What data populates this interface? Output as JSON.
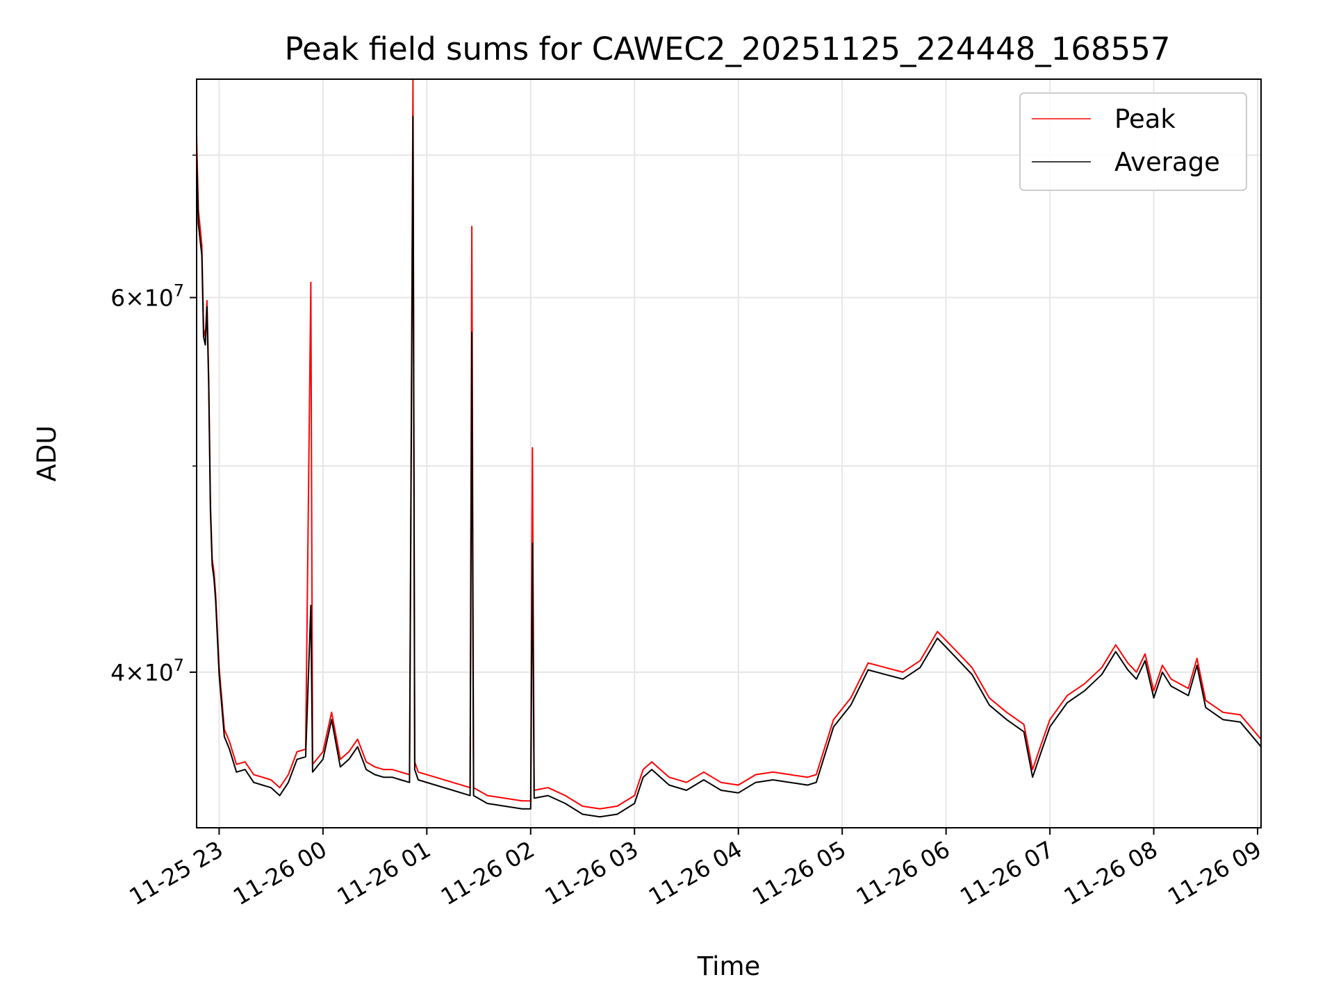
{
  "chart_data": {
    "type": "line",
    "title": "Peak field sums for CAWEC2_20251125_224448_168557",
    "xlabel": "Time",
    "ylabel": "ADU",
    "y_scale": "log",
    "x_range": [
      "2025-11-25 22:47",
      "2025-11-26 09:02"
    ],
    "ylim": [
      33800000,
      76000000
    ],
    "x_ticks": [
      "11-25 23",
      "11-26 00",
      "11-26 01",
      "11-26 02",
      "11-26 03",
      "11-26 04",
      "11-26 05",
      "11-26 06",
      "11-26 07",
      "11-26 08",
      "11-26 09"
    ],
    "y_ticks_major": [
      {
        "value": 40000000,
        "label_mantissa": "4",
        "label_exp": "7"
      },
      {
        "value": 60000000,
        "label_mantissa": "6",
        "label_exp": "7"
      }
    ],
    "y_ticks_minor": [
      30000000,
      50000000,
      70000000
    ],
    "grid": true,
    "legend_position": "upper right",
    "series": [
      {
        "name": "Peak",
        "color": "#ff0000",
        "points": [
          [
            "2025-11-25 22:47",
            71500000
          ],
          [
            "2025-11-25 22:48",
            66000000
          ],
          [
            "2025-11-25 22:50",
            63500000
          ],
          [
            "2025-11-25 22:51",
            58000000
          ],
          [
            "2025-11-25 22:52",
            57500000
          ],
          [
            "2025-11-25 22:53",
            59800000
          ],
          [
            "2025-11-25 22:54",
            55000000
          ],
          [
            "2025-11-25 22:55",
            48000000
          ],
          [
            "2025-11-25 22:56",
            45200000
          ],
          [
            "2025-11-25 22:57",
            44600000
          ],
          [
            "2025-11-25 22:58",
            43500000
          ],
          [
            "2025-11-25 23:00",
            40200000
          ],
          [
            "2025-11-25 23:03",
            37600000
          ],
          [
            "2025-11-25 23:06",
            37100000
          ],
          [
            "2025-11-25 23:10",
            36200000
          ],
          [
            "2025-11-25 23:15",
            36300000
          ],
          [
            "2025-11-25 23:20",
            35800000
          ],
          [
            "2025-11-25 23:25",
            35700000
          ],
          [
            "2025-11-25 23:30",
            35600000
          ],
          [
            "2025-11-25 23:35",
            35300000
          ],
          [
            "2025-11-25 23:40",
            35800000
          ],
          [
            "2025-11-25 23:45",
            36700000
          ],
          [
            "2025-11-25 23:50",
            36800000
          ],
          [
            "2025-11-25 23:53",
            61000000
          ],
          [
            "2025-11-25 23:54",
            36200000
          ],
          [
            "2025-11-26 00:00",
            36700000
          ],
          [
            "2025-11-26 00:05",
            38300000
          ],
          [
            "2025-11-26 00:10",
            36400000
          ],
          [
            "2025-11-26 00:15",
            36700000
          ],
          [
            "2025-11-26 00:20",
            37200000
          ],
          [
            "2025-11-26 00:25",
            36300000
          ],
          [
            "2025-11-26 00:30",
            36100000
          ],
          [
            "2025-11-26 00:35",
            36000000
          ],
          [
            "2025-11-26 00:40",
            36000000
          ],
          [
            "2025-11-26 00:45",
            35900000
          ],
          [
            "2025-11-26 00:50",
            35800000
          ],
          [
            "2025-11-26 00:52",
            76000000
          ],
          [
            "2025-11-26 00:53",
            36300000
          ],
          [
            "2025-11-26 00:55",
            35900000
          ],
          [
            "2025-11-26 01:05",
            35700000
          ],
          [
            "2025-11-26 01:15",
            35500000
          ],
          [
            "2025-11-26 01:25",
            35300000
          ],
          [
            "2025-11-26 01:26",
            64800000
          ],
          [
            "2025-11-26 01:27",
            35300000
          ],
          [
            "2025-11-26 01:35",
            35000000
          ],
          [
            "2025-11-26 01:45",
            34900000
          ],
          [
            "2025-11-26 01:55",
            34800000
          ],
          [
            "2025-11-26 02:00",
            34800000
          ],
          [
            "2025-11-26 02:01",
            51000000
          ],
          [
            "2025-11-26 02:02",
            35200000
          ],
          [
            "2025-11-26 02:10",
            35300000
          ],
          [
            "2025-11-26 02:20",
            35000000
          ],
          [
            "2025-11-26 02:30",
            34600000
          ],
          [
            "2025-11-26 02:40",
            34500000
          ],
          [
            "2025-11-26 02:50",
            34600000
          ],
          [
            "2025-11-26 03:00",
            35000000
          ],
          [
            "2025-11-26 03:05",
            36000000
          ],
          [
            "2025-11-26 03:10",
            36300000
          ],
          [
            "2025-11-26 03:20",
            35700000
          ],
          [
            "2025-11-26 03:30",
            35500000
          ],
          [
            "2025-11-26 03:40",
            35900000
          ],
          [
            "2025-11-26 03:50",
            35500000
          ],
          [
            "2025-11-26 04:00",
            35400000
          ],
          [
            "2025-11-26 04:10",
            35800000
          ],
          [
            "2025-11-26 04:20",
            35900000
          ],
          [
            "2025-11-26 04:30",
            35800000
          ],
          [
            "2025-11-26 04:40",
            35700000
          ],
          [
            "2025-11-26 04:45",
            35800000
          ],
          [
            "2025-11-26 04:55",
            38000000
          ],
          [
            "2025-11-26 05:05",
            38900000
          ],
          [
            "2025-11-26 05:15",
            40400000
          ],
          [
            "2025-11-26 05:25",
            40200000
          ],
          [
            "2025-11-26 05:35",
            40000000
          ],
          [
            "2025-11-26 05:45",
            40500000
          ],
          [
            "2025-11-26 05:55",
            41800000
          ],
          [
            "2025-11-26 06:05",
            41000000
          ],
          [
            "2025-11-26 06:15",
            40200000
          ],
          [
            "2025-11-26 06:25",
            38900000
          ],
          [
            "2025-11-26 06:35",
            38300000
          ],
          [
            "2025-11-26 06:45",
            37800000
          ],
          [
            "2025-11-26 06:50",
            36000000
          ],
          [
            "2025-11-26 06:55",
            37000000
          ],
          [
            "2025-11-26 07:00",
            38000000
          ],
          [
            "2025-11-26 07:10",
            39000000
          ],
          [
            "2025-11-26 07:20",
            39500000
          ],
          [
            "2025-11-26 07:30",
            40200000
          ],
          [
            "2025-11-26 07:38",
            41200000
          ],
          [
            "2025-11-26 07:45",
            40400000
          ],
          [
            "2025-11-26 07:50",
            40000000
          ],
          [
            "2025-11-26 07:55",
            40800000
          ],
          [
            "2025-11-26 08:00",
            39200000
          ],
          [
            "2025-11-26 08:05",
            40300000
          ],
          [
            "2025-11-26 08:10",
            39700000
          ],
          [
            "2025-11-26 08:20",
            39300000
          ],
          [
            "2025-11-26 08:25",
            40600000
          ],
          [
            "2025-11-26 08:30",
            38800000
          ],
          [
            "2025-11-26 08:40",
            38300000
          ],
          [
            "2025-11-26 08:50",
            38200000
          ],
          [
            "2025-11-26 09:02",
            37200000
          ]
        ]
      },
      {
        "name": "Average",
        "color": "#000000",
        "points": [
          [
            "2025-11-25 22:47",
            70000000
          ],
          [
            "2025-11-25 22:48",
            65000000
          ],
          [
            "2025-11-25 22:50",
            62800000
          ],
          [
            "2025-11-25 22:51",
            57500000
          ],
          [
            "2025-11-25 22:52",
            57000000
          ],
          [
            "2025-11-25 22:53",
            59400000
          ],
          [
            "2025-11-25 22:54",
            54500000
          ],
          [
            "2025-11-25 22:55",
            47600000
          ],
          [
            "2025-11-25 22:56",
            44900000
          ],
          [
            "2025-11-25 22:57",
            44300000
          ],
          [
            "2025-11-25 22:58",
            43200000
          ],
          [
            "2025-11-25 23:00",
            39900000
          ],
          [
            "2025-11-25 23:03",
            37300000
          ],
          [
            "2025-11-25 23:06",
            36800000
          ],
          [
            "2025-11-25 23:10",
            35900000
          ],
          [
            "2025-11-25 23:15",
            36000000
          ],
          [
            "2025-11-25 23:20",
            35500000
          ],
          [
            "2025-11-25 23:25",
            35400000
          ],
          [
            "2025-11-25 23:30",
            35300000
          ],
          [
            "2025-11-25 23:35",
            35000000
          ],
          [
            "2025-11-25 23:40",
            35500000
          ],
          [
            "2025-11-25 23:45",
            36400000
          ],
          [
            "2025-11-25 23:50",
            36500000
          ],
          [
            "2025-11-25 23:53",
            43000000
          ],
          [
            "2025-11-25 23:54",
            35900000
          ],
          [
            "2025-11-26 00:00",
            36400000
          ],
          [
            "2025-11-26 00:05",
            38000000
          ],
          [
            "2025-11-26 00:10",
            36100000
          ],
          [
            "2025-11-26 00:15",
            36400000
          ],
          [
            "2025-11-26 00:20",
            36900000
          ],
          [
            "2025-11-26 00:25",
            36000000
          ],
          [
            "2025-11-26 00:30",
            35800000
          ],
          [
            "2025-11-26 00:35",
            35700000
          ],
          [
            "2025-11-26 00:40",
            35700000
          ],
          [
            "2025-11-26 00:45",
            35600000
          ],
          [
            "2025-11-26 00:50",
            35500000
          ],
          [
            "2025-11-26 00:52",
            73000000
          ],
          [
            "2025-11-26 00:53",
            36000000
          ],
          [
            "2025-11-26 00:55",
            35600000
          ],
          [
            "2025-11-26 01:05",
            35400000
          ],
          [
            "2025-11-26 01:15",
            35200000
          ],
          [
            "2025-11-26 01:25",
            35000000
          ],
          [
            "2025-11-26 01:26",
            57800000
          ],
          [
            "2025-11-26 01:27",
            35000000
          ],
          [
            "2025-11-26 01:35",
            34700000
          ],
          [
            "2025-11-26 01:45",
            34600000
          ],
          [
            "2025-11-26 01:55",
            34500000
          ],
          [
            "2025-11-26 02:00",
            34500000
          ],
          [
            "2025-11-26 02:01",
            46000000
          ],
          [
            "2025-11-26 02:02",
            34900000
          ],
          [
            "2025-11-26 02:10",
            35000000
          ],
          [
            "2025-11-26 02:20",
            34700000
          ],
          [
            "2025-11-26 02:30",
            34300000
          ],
          [
            "2025-11-26 02:40",
            34200000
          ],
          [
            "2025-11-26 02:50",
            34300000
          ],
          [
            "2025-11-26 03:00",
            34700000
          ],
          [
            "2025-11-26 03:05",
            35700000
          ],
          [
            "2025-11-26 03:10",
            36000000
          ],
          [
            "2025-11-26 03:20",
            35400000
          ],
          [
            "2025-11-26 03:30",
            35200000
          ],
          [
            "2025-11-26 03:40",
            35600000
          ],
          [
            "2025-11-26 03:50",
            35200000
          ],
          [
            "2025-11-26 04:00",
            35100000
          ],
          [
            "2025-11-26 04:10",
            35500000
          ],
          [
            "2025-11-26 04:20",
            35600000
          ],
          [
            "2025-11-26 04:30",
            35500000
          ],
          [
            "2025-11-26 04:40",
            35400000
          ],
          [
            "2025-11-26 04:45",
            35500000
          ],
          [
            "2025-11-26 04:55",
            37700000
          ],
          [
            "2025-11-26 05:05",
            38600000
          ],
          [
            "2025-11-26 05:15",
            40100000
          ],
          [
            "2025-11-26 05:25",
            39900000
          ],
          [
            "2025-11-26 05:35",
            39700000
          ],
          [
            "2025-11-26 05:45",
            40200000
          ],
          [
            "2025-11-26 05:55",
            41500000
          ],
          [
            "2025-11-26 06:05",
            40700000
          ],
          [
            "2025-11-26 06:15",
            39900000
          ],
          [
            "2025-11-26 06:25",
            38600000
          ],
          [
            "2025-11-26 06:35",
            38000000
          ],
          [
            "2025-11-26 06:45",
            37500000
          ],
          [
            "2025-11-26 06:50",
            35700000
          ],
          [
            "2025-11-26 06:55",
            36700000
          ],
          [
            "2025-11-26 07:00",
            37700000
          ],
          [
            "2025-11-26 07:10",
            38700000
          ],
          [
            "2025-11-26 07:20",
            39200000
          ],
          [
            "2025-11-26 07:30",
            39900000
          ],
          [
            "2025-11-26 07:38",
            40900000
          ],
          [
            "2025-11-26 07:45",
            40100000
          ],
          [
            "2025-11-26 07:50",
            39700000
          ],
          [
            "2025-11-26 07:55",
            40500000
          ],
          [
            "2025-11-26 08:00",
            38900000
          ],
          [
            "2025-11-26 08:05",
            40000000
          ],
          [
            "2025-11-26 08:10",
            39400000
          ],
          [
            "2025-11-26 08:20",
            39000000
          ],
          [
            "2025-11-26 08:25",
            40300000
          ],
          [
            "2025-11-26 08:30",
            38500000
          ],
          [
            "2025-11-26 08:40",
            38000000
          ],
          [
            "2025-11-26 08:50",
            37900000
          ],
          [
            "2025-11-26 09:02",
            36900000
          ]
        ]
      }
    ]
  }
}
